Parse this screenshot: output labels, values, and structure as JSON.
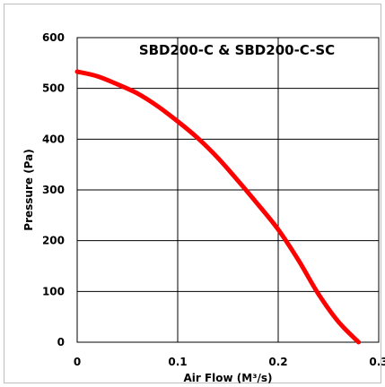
{
  "chart_data": {
    "type": "line",
    "title": "SBD200-C  &  SBD200-C-SC",
    "xlabel": "Air Flow (M³/s)",
    "ylabel": "Pressure (Pa)",
    "xlim": [
      0,
      0.3
    ],
    "ylim": [
      0,
      600
    ],
    "x_ticks": [
      "0",
      "0.1",
      "0.2",
      "0.3"
    ],
    "y_ticks": [
      "0",
      "100",
      "200",
      "300",
      "400",
      "500",
      "600"
    ],
    "grid": true,
    "series": [
      {
        "color": "#ff0000",
        "x": [
          0,
          0.02,
          0.04,
          0.06,
          0.08,
          0.1,
          0.12,
          0.14,
          0.16,
          0.18,
          0.2,
          0.22,
          0.24,
          0.26,
          0.28
        ],
        "y": [
          533,
          524,
          508,
          490,
          465,
          435,
          402,
          363,
          318,
          271,
          222,
          162,
          95,
          40,
          0
        ]
      }
    ]
  }
}
